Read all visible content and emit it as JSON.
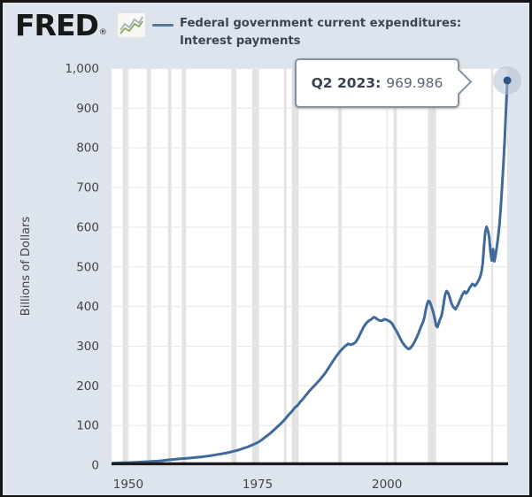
{
  "header": {
    "logo": "FRED",
    "registered": "®",
    "title_line1": "Federal government current expenditures:",
    "title_line2": "Interest payments"
  },
  "tooltip": {
    "label": "Q2 2023:",
    "value": "969.986"
  },
  "chart_data": {
    "type": "line",
    "title": "Federal government current expenditures: Interest payments",
    "ylabel": "Billions of Dollars",
    "units": "Billions of Dollars",
    "xlim": [
      1947,
      2023.25
    ],
    "ylim": [
      0,
      1000
    ],
    "grid": true,
    "x_ticks": [
      {
        "v": 1950,
        "label": "1950"
      },
      {
        "v": 1975,
        "label": "1975"
      },
      {
        "v": 2000,
        "label": "2000"
      }
    ],
    "y_ticks": [
      {
        "v": 0,
        "label": "0"
      },
      {
        "v": 100,
        "label": "100"
      },
      {
        "v": 200,
        "label": "200"
      },
      {
        "v": 300,
        "label": "300"
      },
      {
        "v": 400,
        "label": "400"
      },
      {
        "v": 500,
        "label": "500"
      },
      {
        "v": 600,
        "label": "600"
      },
      {
        "v": 700,
        "label": "700"
      },
      {
        "v": 800,
        "label": "800"
      },
      {
        "v": 900,
        "label": "900"
      },
      {
        "v": 1000,
        "label": "1,000"
      }
    ],
    "line_color": "#40699c",
    "recession_band_color": "#e3e3e3",
    "recessions": [
      [
        1948.92,
        1949.83
      ],
      [
        1953.58,
        1954.42
      ],
      [
        1957.67,
        1958.33
      ],
      [
        1960.33,
        1961.17
      ],
      [
        1969.92,
        1970.92
      ],
      [
        1973.92,
        1975.25
      ],
      [
        1980.08,
        1980.58
      ],
      [
        1981.58,
        1982.92
      ],
      [
        1990.58,
        1991.25
      ],
      [
        2001.25,
        2001.92
      ],
      [
        2007.92,
        2009.5
      ],
      [
        2020.13,
        2020.55
      ]
    ],
    "end_marker": {
      "x": 2023.25,
      "y": 969.986,
      "label": "Q2 2023: 969.986"
    },
    "series": [
      {
        "name": "Federal government current expenditures: Interest payments",
        "x": [
          1947,
          1948,
          1949,
          1950,
          1951,
          1952,
          1953,
          1954,
          1955,
          1956,
          1957,
          1958,
          1959,
          1960,
          1961,
          1962,
          1963,
          1964,
          1965,
          1966,
          1967,
          1968,
          1969,
          1970,
          1971,
          1972,
          1973,
          1974,
          1975,
          1975.5,
          1976,
          1976.5,
          1977,
          1977.5,
          1978,
          1978.5,
          1979,
          1979.5,
          1980,
          1980.5,
          1981,
          1981.5,
          1982,
          1982.25,
          1982.5,
          1983,
          1983.25,
          1983.5,
          1984,
          1984.5,
          1985,
          1985.5,
          1986,
          1986.5,
          1987,
          1987.5,
          1988,
          1988.5,
          1989,
          1989.5,
          1990,
          1990.5,
          1991,
          1991.5,
          1992,
          1992.5,
          1993,
          1993.5,
          1994,
          1994.5,
          1995,
          1995.5,
          1996,
          1996.5,
          1997,
          1997.25,
          1997.5,
          1997.75,
          1998,
          1998.25,
          1998.5,
          1999,
          1999.25,
          1999.5,
          1999.75,
          2000,
          2000.25,
          2000.5,
          2001,
          2001.25,
          2001.5,
          2001.75,
          2002,
          2002.5,
          2003,
          2003.5,
          2004,
          2004.25,
          2004.5,
          2005,
          2005.5,
          2006,
          2006.5,
          2007,
          2007.25,
          2007.5,
          2007.75,
          2008,
          2008.25,
          2008.5,
          2008.75,
          2009,
          2009.25,
          2009.5,
          2009.75,
          2010,
          2010.25,
          2010.5,
          2010.75,
          2011,
          2011.25,
          2011.5,
          2011.75,
          2012,
          2012.25,
          2012.5,
          2012.75,
          2013,
          2013.25,
          2013.5,
          2013.75,
          2014,
          2014.25,
          2014.5,
          2014.75,
          2015,
          2015.25,
          2015.5,
          2015.75,
          2016,
          2016.25,
          2016.5,
          2016.75,
          2017,
          2017.25,
          2017.5,
          2017.75,
          2018,
          2018.25,
          2018.5,
          2018.75,
          2019,
          2019.25,
          2019.5,
          2019.75,
          2020,
          2020.25,
          2020.5,
          2020.75,
          2021,
          2021.25,
          2021.5,
          2021.75,
          2022,
          2022.25,
          2022.5,
          2022.75,
          2023,
          2023.25
        ],
        "y": [
          5,
          5.5,
          6,
          6.5,
          7,
          7.5,
          8.2,
          9,
          9.8,
          10.8,
          12,
          13.5,
          14.8,
          16,
          17,
          18,
          19.3,
          20.8,
          22.3,
          24,
          26.2,
          28.6,
          31,
          33.8,
          37.2,
          41.2,
          45.8,
          51,
          57,
          61,
          66,
          71,
          76,
          81,
          87,
          93,
          99,
          105,
          112,
          119,
          127,
          134,
          142,
          146,
          148,
          155,
          160,
          163,
          171,
          179,
          187,
          194,
          201,
          208,
          215,
          223,
          231,
          241,
          251,
          261,
          271,
          280,
          288,
          295,
          301,
          306,
          304,
          306,
          311,
          322,
          336,
          349,
          358,
          364,
          368,
          371,
          373,
          372,
          369,
          367,
          365,
          364,
          366,
          368,
          367,
          366,
          364,
          363,
          357,
          351,
          345,
          340,
          334,
          321,
          309,
          300,
          294,
          293,
          295,
          303,
          315,
          330,
          347,
          362,
          374,
          392,
          406,
          414,
          412,
          404,
          394,
          382,
          368,
          352,
          348,
          358,
          368,
          375,
          390,
          412,
          430,
          439,
          436,
          428,
          417,
          407,
          400,
          396,
          393,
          399,
          405,
          413,
          420,
          428,
          434,
          438,
          433,
          436,
          441,
          448,
          452,
          457,
          455,
          452,
          456,
          461,
          467,
          475,
          487,
          508,
          552,
          588,
          601,
          591,
          576,
          538,
          516,
          545,
          514,
          530,
          552,
          578,
          608,
          652,
          703,
          758,
          822,
          894,
          969.986
        ]
      }
    ]
  }
}
